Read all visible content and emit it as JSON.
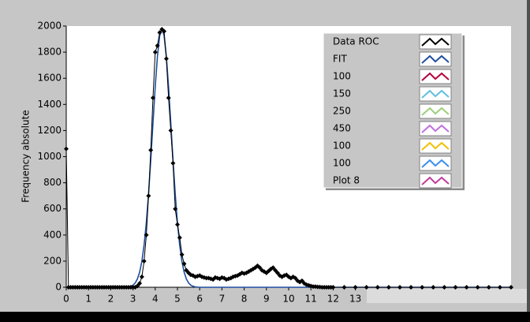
{
  "chart_data": {
    "type": "line",
    "y_label": "Frequency absolute",
    "xlim": [
      0,
      20
    ],
    "ylim": [
      0,
      2000
    ],
    "xticks": [
      0,
      1,
      2,
      3,
      4,
      5,
      6,
      7,
      8,
      9,
      10,
      11,
      12,
      13
    ],
    "yticks": [
      0,
      200,
      400,
      600,
      800,
      1000,
      1200,
      1400,
      1600,
      1800,
      2000
    ],
    "legend": "top-right",
    "x": [
      0,
      0.1,
      0.2,
      0.3,
      0.4,
      0.5,
      0.6,
      0.7,
      0.8,
      0.9,
      1,
      1.1,
      1.2,
      1.3,
      1.4,
      1.5,
      1.6,
      1.7,
      1.8,
      1.9,
      2,
      2.1,
      2.2,
      2.3,
      2.4,
      2.5,
      2.6,
      2.7,
      2.8,
      2.9,
      3,
      3.1,
      3.2,
      3.3,
      3.4,
      3.5,
      3.6,
      3.7,
      3.8,
      3.9,
      4,
      4.1,
      4.2,
      4.3,
      4.4,
      4.5,
      4.6,
      4.7,
      4.8,
      4.9,
      5,
      5.1,
      5.2,
      5.3,
      5.4,
      5.5,
      5.6,
      5.7,
      5.8,
      5.9,
      6,
      6.1,
      6.2,
      6.3,
      6.4,
      6.5,
      6.6,
      6.7,
      6.8,
      6.9,
      7,
      7.1,
      7.2,
      7.3,
      7.4,
      7.5,
      7.6,
      7.7,
      7.8,
      7.9,
      8,
      8.1,
      8.2,
      8.3,
      8.4,
      8.5,
      8.6,
      8.7,
      8.8,
      8.9,
      9,
      9.1,
      9.2,
      9.3,
      9.4,
      9.5,
      9.6,
      9.7,
      9.8,
      9.9,
      10,
      10.1,
      10.2,
      10.3,
      10.4,
      10.5,
      10.6,
      10.7,
      10.8,
      10.9,
      11,
      11.1,
      11.2,
      11.3,
      11.4,
      11.5,
      11.6,
      11.7,
      11.8,
      11.9,
      12,
      12.5,
      13,
      13.5,
      14,
      14.5,
      15,
      15.5,
      16,
      16.5,
      17,
      17.5,
      18,
      18.5,
      19,
      19.5,
      20
    ],
    "series": [
      {
        "name": "Data ROC",
        "color": "#000000",
        "markers": true,
        "values": [
          1060,
          0,
          0,
          0,
          0,
          0,
          0,
          0,
          0,
          0,
          0,
          0,
          0,
          0,
          0,
          0,
          0,
          0,
          0,
          0,
          0,
          0,
          0,
          0,
          0,
          0,
          0,
          0,
          0,
          0,
          0,
          0,
          10,
          30,
          80,
          200,
          400,
          700,
          1050,
          1450,
          1800,
          1850,
          1950,
          1975,
          1960,
          1750,
          1450,
          1200,
          950,
          600,
          480,
          380,
          250,
          180,
          130,
          110,
          95,
          90,
          80,
          85,
          90,
          80,
          75,
          70,
          70,
          65,
          60,
          75,
          70,
          65,
          75,
          70,
          60,
          65,
          70,
          80,
          85,
          90,
          100,
          110,
          105,
          110,
          120,
          130,
          140,
          150,
          165,
          150,
          130,
          120,
          110,
          125,
          140,
          150,
          130,
          110,
          90,
          80,
          90,
          95,
          80,
          70,
          80,
          70,
          50,
          40,
          50,
          30,
          20,
          15,
          10,
          5,
          5,
          3,
          2,
          0,
          0,
          0,
          0,
          0,
          0,
          0,
          0,
          0,
          0,
          0,
          0,
          0,
          0,
          0,
          0,
          0,
          0,
          0,
          0,
          0,
          0
        ]
      },
      {
        "name": "FIT",
        "color": "#1f4f9f",
        "markers": false,
        "values": [
          0,
          0,
          0,
          0,
          0,
          0,
          0,
          0,
          0,
          0,
          0,
          0,
          0,
          0,
          0,
          0,
          0,
          0,
          0,
          0,
          0,
          0,
          0,
          0,
          0,
          0,
          0,
          1,
          3,
          8,
          16,
          33,
          64,
          116,
          199,
          323,
          494,
          714,
          975,
          1258,
          1534,
          1768,
          1925,
          1980,
          1925,
          1768,
          1534,
          1258,
          975,
          714,
          494,
          323,
          199,
          116,
          64,
          33,
          16,
          8,
          3,
          1,
          0,
          0,
          0,
          0,
          0,
          0,
          0,
          0,
          0,
          0,
          0,
          0,
          0,
          0,
          0,
          0,
          0,
          0,
          0,
          0,
          0,
          0,
          0,
          0,
          0,
          0,
          0,
          0,
          0,
          0,
          0,
          0,
          0,
          0,
          0,
          0,
          0,
          0,
          0,
          0,
          0,
          0,
          0,
          0,
          0,
          0,
          0,
          0,
          0,
          0,
          0,
          0,
          0,
          0,
          0,
          0,
          0,
          0,
          0,
          0,
          0,
          0,
          0,
          0,
          0,
          0,
          0,
          0,
          0,
          0,
          0,
          0,
          0,
          0,
          0,
          0,
          0
        ]
      },
      {
        "name": "100",
        "color": "#b8003c"
      },
      {
        "name": "150",
        "color": "#5fbfe0"
      },
      {
        "name": "250",
        "color": "#9ccf7a"
      },
      {
        "name": "450",
        "color": "#c070e0"
      },
      {
        "name": "100",
        "color": "#f0c000"
      },
      {
        "name": "100",
        "color": "#3a8ff0"
      },
      {
        "name": "Plot 8",
        "color": "#c03c9c"
      }
    ]
  }
}
